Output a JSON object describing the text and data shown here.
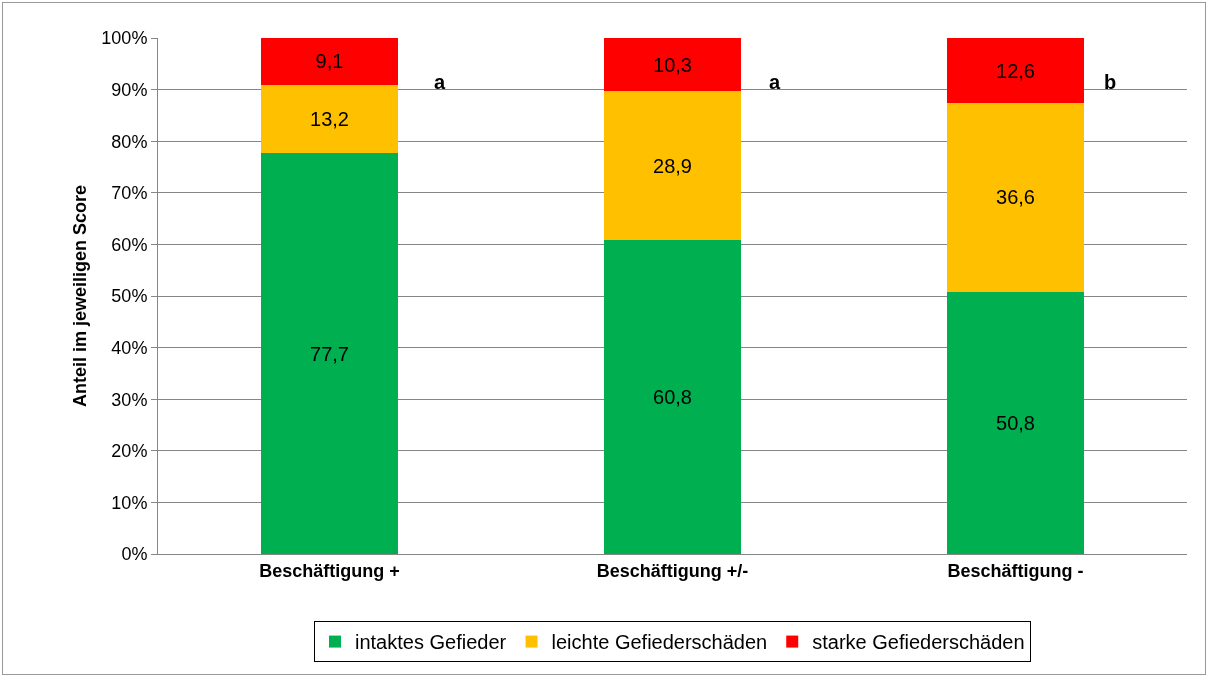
{
  "chart_data": {
    "type": "bar",
    "stacked": true,
    "ylabel": "Anteil im jeweiligen Score",
    "categories": [
      "Beschäftigung +",
      "Beschäftigung +/-",
      "Beschäftigung -"
    ],
    "series": [
      {
        "name": "intaktes Gefieder",
        "color": "#00b050",
        "values": [
          77.7,
          60.8,
          50.8
        ],
        "value_labels": [
          "77,7",
          "60,8",
          "50,8"
        ]
      },
      {
        "name": "leichte Gefiederschäden",
        "color": "#ffc000",
        "values": [
          13.2,
          28.9,
          36.6
        ],
        "value_labels": [
          "13,2",
          "28,9",
          "36,6"
        ]
      },
      {
        "name": "starke Gefiederschäden",
        "color": "#ff0000",
        "values": [
          9.1,
          10.3,
          12.6
        ],
        "value_labels": [
          "9,1",
          "10,3",
          "12,6"
        ]
      }
    ],
    "ylim": [
      0,
      100
    ],
    "yticks": [
      {
        "value": 0,
        "label": "0%"
      },
      {
        "value": 10,
        "label": "10%"
      },
      {
        "value": 20,
        "label": "20%"
      },
      {
        "value": 30,
        "label": "30%"
      },
      {
        "value": 40,
        "label": "40%"
      },
      {
        "value": 50,
        "label": "50%"
      },
      {
        "value": 60,
        "label": "60%"
      },
      {
        "value": 70,
        "label": "70%"
      },
      {
        "value": 80,
        "label": "80%"
      },
      {
        "value": 90,
        "label": "90%"
      },
      {
        "value": 100,
        "label": "100%"
      }
    ],
    "grid": "y",
    "legend": "bottom",
    "annotations": [
      "a",
      "a",
      "b"
    ]
  }
}
